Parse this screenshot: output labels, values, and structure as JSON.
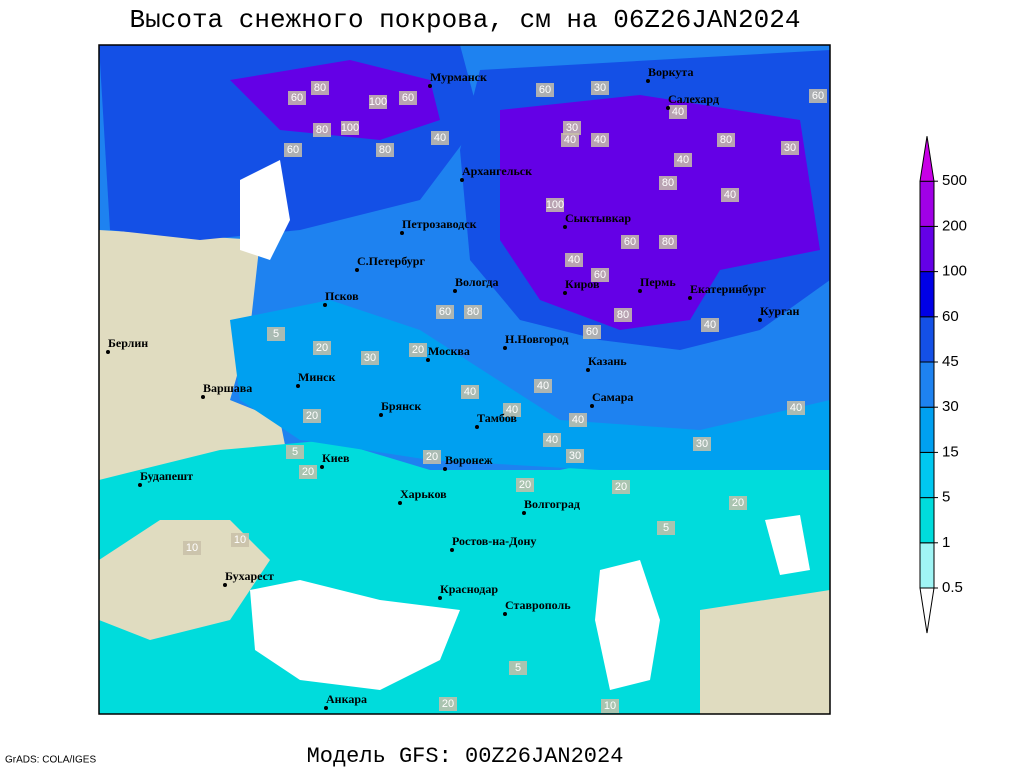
{
  "title": "Высота снежного покрова, см на 06Z26JAN2024",
  "subtitle": "Модель GFS: 00Z26JAN2024",
  "credit": "GrADS: COLA/IGES",
  "legend": {
    "levels": [
      0.5,
      1,
      5,
      15,
      30,
      45,
      60,
      100,
      200,
      500
    ],
    "colors": [
      "#ffffff",
      "#a0f5f5",
      "#00dcdc",
      "#00c8f0",
      "#00a0f0",
      "#1e82f0",
      "#1450e6",
      "#0000e6",
      "#6400e6",
      "#a000e6",
      "#c800e6"
    ]
  },
  "cities": [
    "Мурманск",
    "Воркута",
    "Салехард",
    "Архангельск",
    "Сыктывкар",
    "Петрозаводск",
    "С.Петербург",
    "Вологда",
    "Киров",
    "Пермь",
    "Екатеринбург",
    "Курган",
    "Псков",
    "Берлин",
    "Варшава",
    "Минск",
    "Москва",
    "Н.Новгород",
    "Казань",
    "Брянск",
    "Тамбов",
    "Самара",
    "Киев",
    "Воронеж",
    "Будапешт",
    "Харьков",
    "Волгоград",
    "Ростов-на-Дону",
    "Бухарест",
    "Краснодар",
    "Ставрополь",
    "Анкара"
  ],
  "contour_labels": [
    60,
    80,
    100,
    60,
    100,
    80,
    60,
    80,
    40,
    30,
    60,
    40,
    30,
    40,
    40,
    80,
    100,
    40,
    80,
    40,
    60,
    80,
    60,
    40,
    80,
    60,
    80,
    60,
    40,
    40,
    5,
    20,
    20,
    20,
    40,
    40,
    40,
    30,
    40,
    30,
    40,
    5,
    20,
    20,
    20,
    20,
    5,
    10,
    10,
    20,
    30,
    5,
    10,
    20,
    60,
    30
  ]
}
